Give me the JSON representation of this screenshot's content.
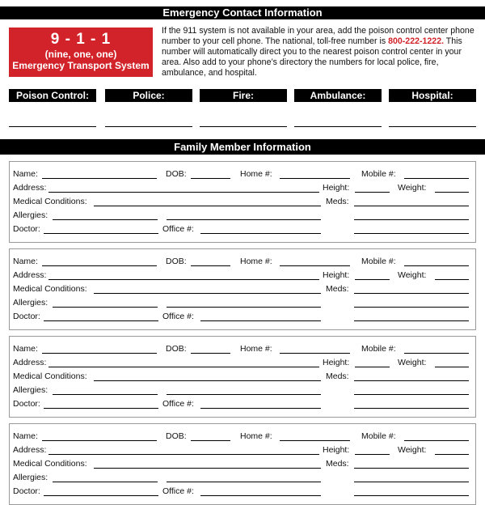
{
  "emergency": {
    "title": "Emergency Contact Information",
    "badge": {
      "number": "9 - 1 - 1",
      "spelled": "(nine, one, one)",
      "system": "Emergency Transport System"
    },
    "intro_before": "If the 911 system is not available in your area, add the poison control center phone number to your cell phone. The national, toll-free number is ",
    "phone": "800-222-1222.",
    "intro_after": " This number will automatically direct you to the nearest poison control center in your area. Also add to your phone’s directory the numbers for local police, fire, ambulance, and hospital.",
    "contacts": [
      "Poison Control:",
      "Police:",
      "Fire:",
      "Ambulance:",
      "Hospital:"
    ],
    "colors": {
      "accent": "#d2232a",
      "bar": "#000000"
    }
  },
  "family": {
    "title": "Family Member Information",
    "fields": {
      "name": "Name:",
      "dob": "DOB:",
      "home": "Home #:",
      "mobile": "Mobile #:",
      "address": "Address:",
      "height": "Height:",
      "weight": "Weight:",
      "medical": "Medical Conditions:",
      "meds": "Meds:",
      "allergies": "Allergies:",
      "doctor": "Doctor:",
      "office": "Office #:"
    },
    "card_count": 4
  }
}
